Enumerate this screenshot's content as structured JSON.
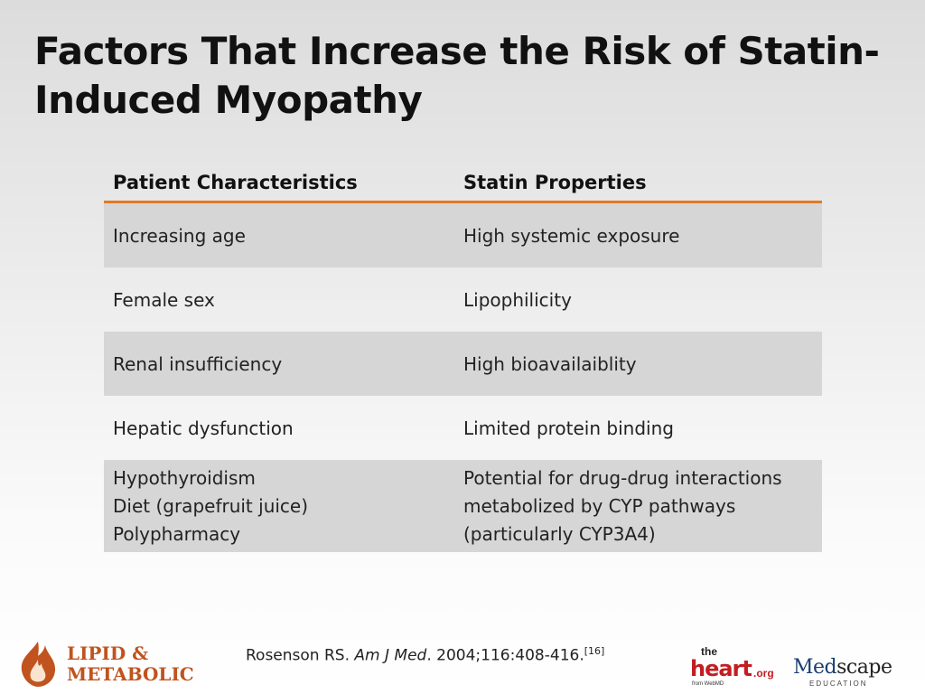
{
  "slide": {
    "title": "Factors That Increase the Risk of Statin-Induced Myopathy"
  },
  "table": {
    "headers": [
      "Patient Characteristics",
      "Statin Properties"
    ],
    "rows": [
      {
        "a": [
          "Increasing age"
        ],
        "b": [
          "High systemic exposure"
        ]
      },
      {
        "a": [
          "Female sex"
        ],
        "b": [
          "Lipophilicity"
        ]
      },
      {
        "a": [
          "Renal insufficiency"
        ],
        "b": [
          "High bioavailaiblity"
        ]
      },
      {
        "a": [
          "Hepatic dysfunction"
        ],
        "b": [
          "Limited protein binding"
        ]
      },
      {
        "a": [
          "Hypothyroidism",
          "Diet (grapefruit juice)",
          "Polypharmacy"
        ],
        "b": [
          "Potential for drug-drug interactions",
          "metabolized by CYP pathways",
          "(particularly CYP3A4)"
        ]
      }
    ]
  },
  "citation": {
    "author": "Rosenson RS.",
    "journal": "Am J Med",
    "details": ". 2004;116:408-416.",
    "ref": "[16]"
  },
  "logos": {
    "lipid_line1": "LIPID &",
    "lipid_line2": "METABOLIC",
    "heart_the": "the",
    "heart_name": "heart",
    "heart_org": ".org",
    "heart_from": "from WebMD",
    "medscape_med": "Med",
    "medscape_scape": "scape",
    "medscape_edu": "EDUCATION"
  },
  "colors": {
    "accent_orange": "#e07b24",
    "row_shade": "#d6d6d6",
    "heart_red": "#c21d22",
    "medscape_blue": "#1b3f73",
    "lipid_orange": "#c0531e"
  }
}
